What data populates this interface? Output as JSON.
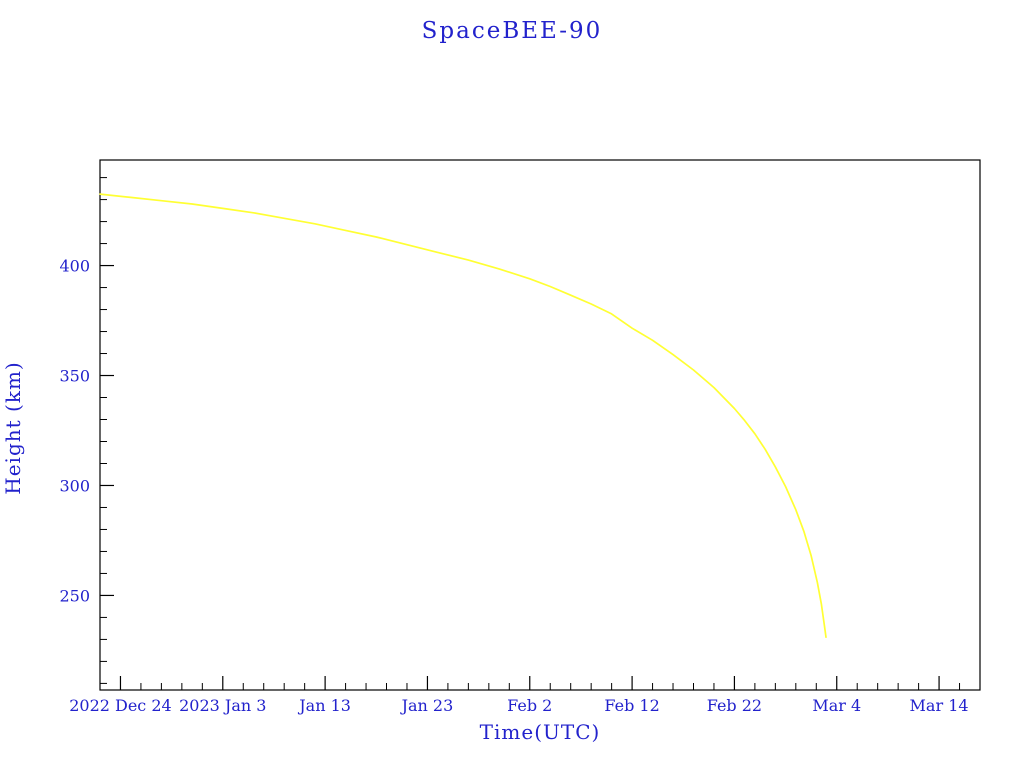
{
  "page": {
    "background": "#ffffff"
  },
  "chart_data": {
    "type": "line",
    "title": "SpaceBEE-90",
    "xlabel": "Time(UTC)",
    "ylabel": "Height (km)",
    "legend": null,
    "grid": false,
    "colors": {
      "text": "#2222cc",
      "axis": "#000000",
      "line": "#ffff33",
      "background": "#ffffff"
    },
    "x_axis": {
      "start_date": "2022-12-22",
      "end_day": 86,
      "tick_days": [
        2,
        12,
        22,
        32,
        42,
        52,
        62,
        72,
        82
      ],
      "tick_labels": [
        "2022 Dec 24",
        "2023 Jan 3",
        "Jan 13",
        "Jan 23",
        "Feb 2",
        "Feb 12",
        "Feb 22",
        "Mar 4",
        "Mar 14"
      ],
      "minor_tick_interval_days": 2
    },
    "y_axis": {
      "min": 207,
      "max": 448,
      "tick_values": [
        250,
        300,
        350,
        400
      ],
      "minor_tick_interval": 10
    },
    "series": [
      {
        "name": "height-km",
        "color": "#ffff33",
        "points": [
          [
            0,
            432.5
          ],
          [
            3,
            431
          ],
          [
            6,
            429.5
          ],
          [
            9,
            428
          ],
          [
            12,
            426
          ],
          [
            15,
            424
          ],
          [
            18,
            421.5
          ],
          [
            21,
            419
          ],
          [
            24,
            416
          ],
          [
            27,
            413
          ],
          [
            30,
            409.5
          ],
          [
            33,
            406
          ],
          [
            36,
            402.5
          ],
          [
            39,
            398.5
          ],
          [
            42,
            394
          ],
          [
            44,
            390.5
          ],
          [
            46,
            386.5
          ],
          [
            48,
            382.5
          ],
          [
            50,
            378
          ],
          [
            52,
            371.5
          ],
          [
            54,
            366
          ],
          [
            56,
            359.5
          ],
          [
            58,
            352.5
          ],
          [
            60,
            344.5
          ],
          [
            62,
            335
          ],
          [
            63,
            329.5
          ],
          [
            64,
            323.5
          ],
          [
            65,
            316.5
          ],
          [
            66,
            308.5
          ],
          [
            67,
            299.5
          ],
          [
            68,
            289
          ],
          [
            68.8,
            279
          ],
          [
            69.5,
            268
          ],
          [
            70.1,
            256
          ],
          [
            70.5,
            246
          ],
          [
            70.8,
            236
          ],
          [
            70.95,
            231
          ]
        ]
      }
    ]
  }
}
